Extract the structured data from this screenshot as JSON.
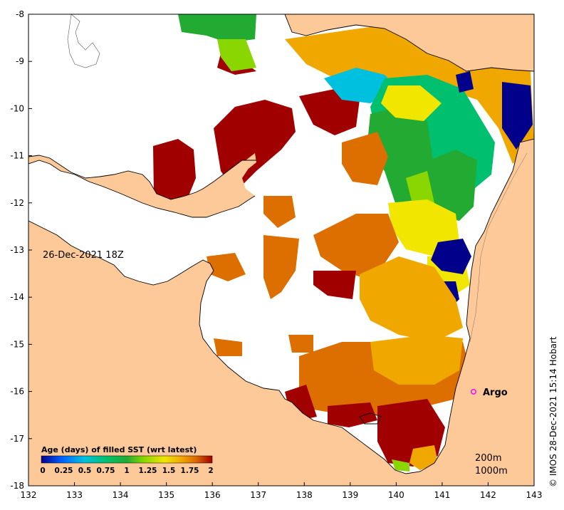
{
  "map": {
    "lon_ticks": [
      "132",
      "133",
      "134",
      "135",
      "136",
      "137",
      "138",
      "139",
      "140",
      "141",
      "142",
      "143"
    ],
    "lat_ticks": [
      "-8",
      "-9",
      "-10",
      "-11",
      "-12",
      "-13",
      "-14",
      "-15",
      "-16",
      "-17",
      "-18"
    ],
    "lon_range": [
      132,
      143
    ],
    "lat_range": [
      -18,
      -8
    ],
    "colors": {
      "land": "#fdc998",
      "no_data": "#ffffff",
      "coast": "#000000"
    }
  },
  "annotations": {
    "date_label": "26-Dec-2021 18Z",
    "argo_label": "Argo",
    "argo_marker_color": "#ff00ff",
    "depth_200": "200m",
    "depth_1000": "1000m",
    "credit": "© IMOS 28-Dec-2021 15:14 Hobart"
  },
  "colorbar": {
    "title": "Age (days) of filled SST (wrt latest)",
    "tick_labels": [
      "0",
      "0.25",
      "0.5",
      "0.75",
      "1",
      "1.25",
      "1.5",
      "1.75",
      "2"
    ],
    "range": [
      0,
      2
    ],
    "stops": [
      "#00008b",
      "#0060ff",
      "#00c0e0",
      "#00c070",
      "#22aa33",
      "#8ad600",
      "#f0e600",
      "#f0a800",
      "#dd6e00",
      "#a00000"
    ]
  }
}
